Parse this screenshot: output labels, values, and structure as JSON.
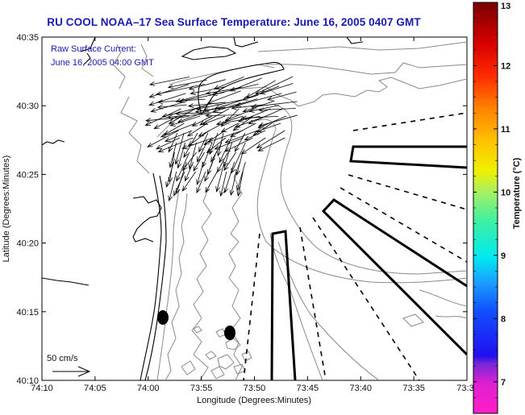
{
  "title": "RU COOL  NOAA–17  Sea Surface Temperature:  June 16, 2005 0407 GMT",
  "legend": {
    "line1": "Raw Surface Current:",
    "line2": "June 16, 2005 04:00 GMT"
  },
  "scale_arrow_label": "50 cm/s",
  "x_axis": {
    "label": "Longitude (Degrees:Minutes)",
    "ticks": [
      "74:10",
      "74:05",
      "74:00",
      "73:55",
      "73:50",
      "73:45",
      "73:40",
      "73:35",
      "73:3"
    ]
  },
  "y_axis": {
    "label": "Latitude (Degrees:Minutes)",
    "ticks": [
      "40:35",
      "40:30",
      "40:25",
      "40:20",
      "40:15",
      "40:10"
    ]
  },
  "colorbar": {
    "label": "Temperature (°C)",
    "ticks": [
      "13",
      "12",
      "11",
      "10",
      "9",
      "8",
      "7"
    ],
    "min": 6.5,
    "max": 13,
    "colors": [
      "#ff1fd0",
      "#c020d8",
      "#6020e0",
      "#1010f0",
      "#1040ff",
      "#1a9cff",
      "#00e8f0",
      "#30f0a0",
      "#a0f060",
      "#f0f000",
      "#ffc000",
      "#ff8000",
      "#ff3000",
      "#e00000",
      "#800000"
    ]
  },
  "colors": {
    "title": "#1a1ab0",
    "coast": "#000000",
    "contour": "#8a8a8a"
  }
}
